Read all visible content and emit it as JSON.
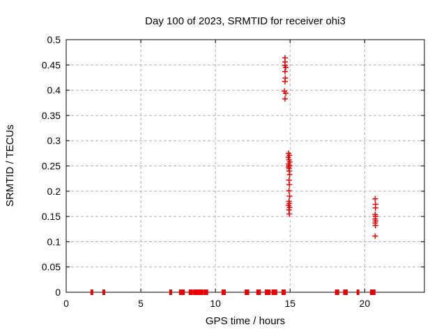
{
  "colors": {
    "background": "#ffffff",
    "marker": "#e60000",
    "grid": "#b0b0b0",
    "border": "#000000",
    "text": "#000000"
  },
  "chart_data": {
    "type": "scatter",
    "title": "Day 100 of 2023, SRMTID for receiver ohi3",
    "xlabel": "GPS time / hours",
    "ylabel": "SRMTID / TECUs",
    "xlim": [
      0,
      24
    ],
    "ylim": [
      0,
      0.5
    ],
    "xticks": [
      0,
      5,
      10,
      15,
      20
    ],
    "xtick_labels": [
      "0",
      "5",
      "10",
      "15",
      "20"
    ],
    "yticks": [
      0,
      0.05,
      0.1,
      0.15,
      0.2,
      0.25,
      0.3,
      0.35,
      0.4,
      0.45,
      0.5
    ],
    "ytick_labels": [
      "0",
      "0.05",
      "0.1",
      "0.15",
      "0.2",
      "0.25",
      "0.3",
      "0.35",
      "0.4",
      "0.45",
      "0.5"
    ],
    "grid": true,
    "legend": "none",
    "marker": "plus",
    "series": [
      {
        "name": "SRMTID",
        "points": [
          [
            14.66,
            0.464
          ],
          [
            14.66,
            0.456
          ],
          [
            14.66,
            0.449
          ],
          [
            14.71,
            0.445
          ],
          [
            14.66,
            0.437
          ],
          [
            14.68,
            0.424
          ],
          [
            14.66,
            0.417
          ],
          [
            14.62,
            0.398
          ],
          [
            14.71,
            0.394
          ],
          [
            14.66,
            0.383
          ],
          [
            14.9,
            0.275
          ],
          [
            14.95,
            0.271
          ],
          [
            14.88,
            0.267
          ],
          [
            14.93,
            0.262
          ],
          [
            14.98,
            0.258
          ],
          [
            14.9,
            0.254
          ],
          [
            14.95,
            0.251
          ],
          [
            14.9,
            0.248
          ],
          [
            14.93,
            0.245
          ],
          [
            14.95,
            0.24
          ],
          [
            14.97,
            0.233
          ],
          [
            14.93,
            0.222
          ],
          [
            14.95,
            0.213
          ],
          [
            14.93,
            0.201
          ],
          [
            14.97,
            0.19
          ],
          [
            14.93,
            0.18
          ],
          [
            14.95,
            0.176
          ],
          [
            14.9,
            0.172
          ],
          [
            14.97,
            0.168
          ],
          [
            14.93,
            0.163
          ],
          [
            14.95,
            0.155
          ],
          [
            20.7,
            0.185
          ],
          [
            20.72,
            0.174
          ],
          [
            20.72,
            0.167
          ],
          [
            20.7,
            0.154
          ],
          [
            20.72,
            0.15
          ],
          [
            20.7,
            0.145
          ],
          [
            20.73,
            0.141
          ],
          [
            20.7,
            0.137
          ],
          [
            20.72,
            0.132
          ],
          [
            20.7,
            0.111
          ],
          [
            1.72,
            0
          ],
          [
            2.52,
            0
          ],
          [
            7.0,
            0
          ],
          [
            7.65,
            0
          ],
          [
            7.75,
            0
          ],
          [
            7.85,
            0
          ],
          [
            8.3,
            0
          ],
          [
            8.4,
            0
          ],
          [
            8.6,
            0
          ],
          [
            8.7,
            0
          ],
          [
            8.8,
            0
          ],
          [
            8.9,
            0
          ],
          [
            9.0,
            0
          ],
          [
            9.1,
            0
          ],
          [
            9.3,
            0
          ],
          [
            9.42,
            0
          ],
          [
            10.5,
            0
          ],
          [
            10.6,
            0
          ],
          [
            12.05,
            0
          ],
          [
            12.17,
            0
          ],
          [
            12.83,
            0
          ],
          [
            12.95,
            0
          ],
          [
            13.4,
            0
          ],
          [
            13.5,
            0
          ],
          [
            13.6,
            0
          ],
          [
            13.85,
            0
          ],
          [
            13.95,
            0
          ],
          [
            14.05,
            0
          ],
          [
            14.52,
            0
          ],
          [
            14.62,
            0
          ],
          [
            18.1,
            0
          ],
          [
            18.2,
            0
          ],
          [
            18.65,
            0
          ],
          [
            18.77,
            0
          ],
          [
            19.55,
            0
          ],
          [
            20.45,
            0
          ],
          [
            20.55,
            0
          ],
          [
            20.63,
            0
          ]
        ]
      }
    ]
  }
}
